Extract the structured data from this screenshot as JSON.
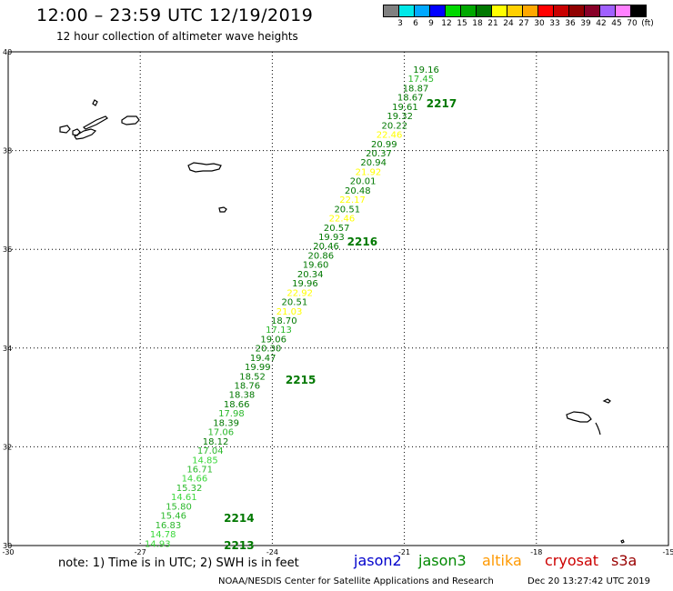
{
  "header": {
    "title": "12:00 – 23:59 UTC 12/19/2019",
    "subtitle": "12 hour collection of altimeter wave heights"
  },
  "legend": {
    "colors": [
      "#808080",
      "#00e8e8",
      "#00a8ff",
      "#0000ff",
      "#00d800",
      "#00a800",
      "#007800",
      "#ffff00",
      "#ffd000",
      "#ffa800",
      "#ff0000",
      "#c80000",
      "#900000",
      "#880028",
      "#a060ff",
      "#ff80ff",
      "#000000"
    ],
    "labels": [
      "3",
      "6",
      "9",
      "12",
      "15",
      "18",
      "21",
      "24",
      "27",
      "30",
      "33",
      "36",
      "39",
      "42",
      "45",
      "70",
      "(ft)"
    ]
  },
  "chart_data": {
    "type": "scatter",
    "xlim": [
      -30,
      -15
    ],
    "ylim": [
      30,
      40
    ],
    "x_ticks": [
      "-30",
      "-27",
      "-24",
      "-21",
      "-18",
      "-15"
    ],
    "y_ticks": [
      "40",
      "38",
      "36",
      "34",
      "32",
      "30"
    ],
    "grid": true,
    "track": {
      "start": [
        -26.9,
        30.05
      ],
      "end": [
        -20.8,
        39.65
      ],
      "values": [
        "14.93",
        "14.78",
        "16.83",
        "15.46",
        "15.80",
        "14.61",
        "15.32",
        "14.66",
        "16.71",
        "14.85",
        "17.04",
        "18.12",
        "17.06",
        "18.39",
        "17.98",
        "18.66",
        "18.38",
        "18.76",
        "18.52",
        "19.99",
        "19.47",
        "20.30",
        "19.06",
        "17.13",
        "18.70",
        "21.03",
        "20.51",
        "22.92",
        "19.96",
        "20.34",
        "19.60",
        "20.86",
        "20.46",
        "19.93",
        "20.57",
        "22.46",
        "20.51",
        "22.17",
        "20.48",
        "20.01",
        "21.92",
        "20.94",
        "20.37",
        "20.99",
        "22.46",
        "20.22",
        "19.32",
        "19.61",
        "18.67",
        "18.87",
        "17.45",
        "19.16"
      ]
    },
    "pass_labels": [
      {
        "text": "2213",
        "x": -25.1,
        "y": 30.0
      },
      {
        "text": "2214",
        "x": -25.1,
        "y": 30.55
      },
      {
        "text": "2215",
        "x": -23.7,
        "y": 33.35
      },
      {
        "text": "2216",
        "x": -22.3,
        "y": 36.15
      },
      {
        "text": "2217",
        "x": -20.5,
        "y": 38.95
      }
    ]
  },
  "footer": {
    "note": "note: 1) Time is in UTC; 2) SWH is in feet",
    "missions": [
      {
        "name": "jason2",
        "color": "#0000cc"
      },
      {
        "name": "jason3",
        "color": "#008800"
      },
      {
        "name": "altika",
        "color": "#ff9900"
      },
      {
        "name": "cryosat",
        "color": "#cc0000"
      },
      {
        "name": "s3a",
        "color": "#990000"
      }
    ],
    "credit": "NOAA/NESDIS Center for Satellite Applications and Research",
    "timestamp": "Dec 20 13:27:42 UTC 2019"
  }
}
